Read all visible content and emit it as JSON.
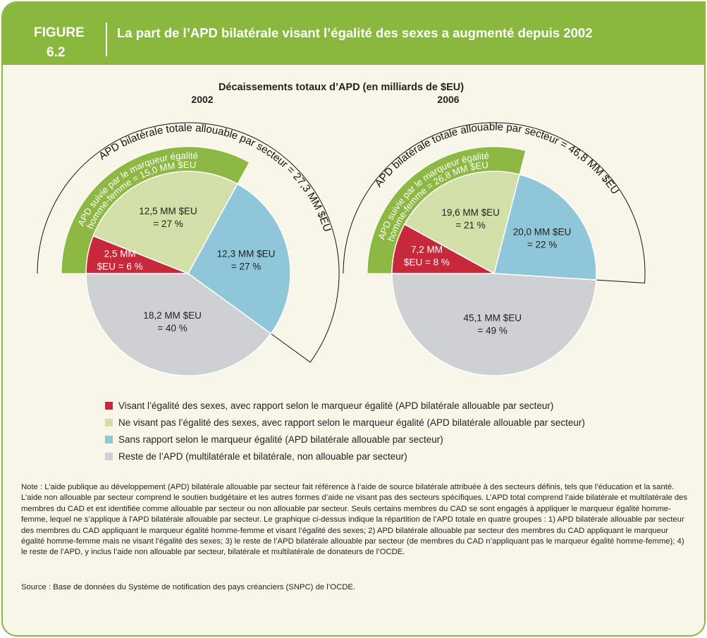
{
  "figure": {
    "label": "FIGURE",
    "number": "6.2",
    "title": "La part de l’APD bilatérale visant l’égalité des sexes a augmenté depuis 2002"
  },
  "chart_data": [
    {
      "type": "pie",
      "title": "Décaissements totaux d’APD (en milliards de $EU)",
      "subtitle": "2002",
      "categories": [
        "Visant l’égalité des sexes, avec rapport selon le marqueur égalité (APD bilatérale allouable par secteur)",
        "Ne visant pas l’égalité des sexes, avec rapport selon le marqueur égalité (APD bilatérale allouable par secteur)",
        "Sans rapport selon le marqueur égalité (APD bilatérale allouable par secteur)",
        "Reste de l’APD (multilatérale et bilatérale, non allouable par secteur)"
      ],
      "colors": [
        "#c8283c",
        "#d3dfa9",
        "#8fc6d9",
        "#cfd0d4"
      ],
      "values": [
        6,
        27,
        27,
        40
      ],
      "value_labels": [
        [
          "2,5 MM",
          "$EU = 6 %"
        ],
        [
          "12,5 MM $EU",
          "= 27 %"
        ],
        [
          "12,3 MM $EU",
          "= 27 %"
        ],
        [
          "18,2 MM $EU",
          "= 40 %"
        ]
      ],
      "band_color": "#8db843",
      "band_label": [
        "APD suivie par le marqueur égalité",
        "homme-femme = 15,0 MM $EU"
      ],
      "outer_label": "APD bilatérale totale allouable par secteur = 27,3 MM $EU"
    },
    {
      "type": "pie",
      "subtitle": "2006",
      "colors": [
        "#c8283c",
        "#d3dfa9",
        "#8fc6d9",
        "#cfd0d4"
      ],
      "values": [
        8,
        21,
        22,
        49
      ],
      "value_labels": [
        [
          "7,2 MM",
          "$EU = 8 %"
        ],
        [
          "19,6 MM $EU",
          "= 21 %"
        ],
        [
          "20,0 MM $EU",
          "= 22 %"
        ],
        [
          "45,1 MM $EU",
          "= 49 %"
        ]
      ],
      "band_color": "#8db843",
      "band_label": [
        "APD suivie par le marqueur égalité",
        "homme-femme = 26,8 MM $EU"
      ],
      "outer_label": "APD bilatérale totale allouable par secteur = 46,8 MM $EU"
    }
  ],
  "note": "Note : L’aide publique au développement (APD) bilatérale allouable par secteur fait référence à l’aide de source bilatérale attribuée à des secteurs définis, tels que l’éducation et la santé. L’aide non allouable par secteur comprend le soutien budgétaire et les autres formes d’aide ne visant pas des secteurs spécifiques. L’APD total comprend l’aide bilatérale et multilatérale des membres du CAD et est identifiée comme allouable par secteur ou non allouable par secteur. Seuls certains membres du CAD se sont engagés à appliquer le marqueur égalité homme-femme, lequel ne s’applique à l’APD bilatérale allouable par secteur. Le graphique ci-dessus indique la répartition de l’APD totale en quatre groupes : 1) APD bilatérale allouable par secteur des membres du CAD appliquant le marqueur égalité homme-femme et visant l’égalité des sexes; 2) APD bilatérale allouable par secteur des membres du CAD appliquant le marqueur égalité homme-femme mais ne visant l’égalité des sexes; 3) le reste de l’APD bilatérale allouable par secteur (de membres du CAD n’appliquant pas le marqueur égalité homme-femme); 4) le reste de l’APD, y inclus l’aide non allouable par secteur, bilatérale et multilatérale de donateurs de l’OCDE.",
  "source": "Source : Base de données du Système de notification des pays créanciers (SNPC) de l’OCDE."
}
